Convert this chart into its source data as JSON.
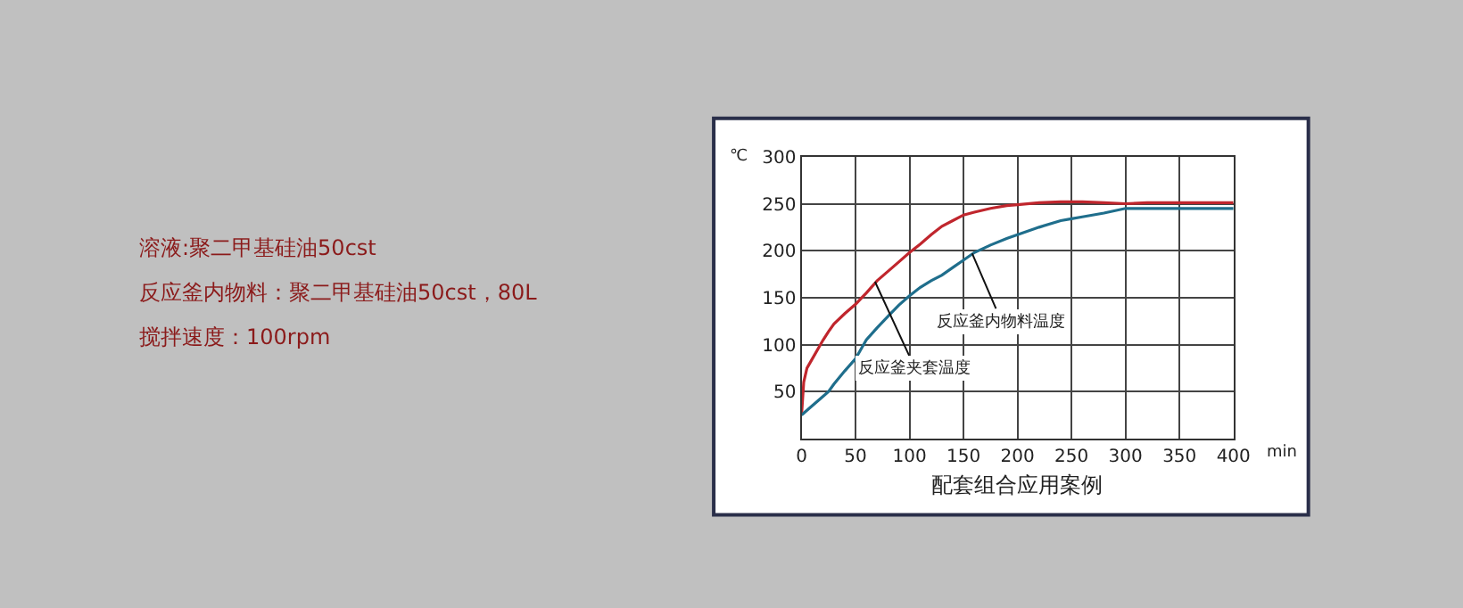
{
  "chart_data": {
    "type": "line",
    "title": "配套组合应用案例",
    "xlabel": "min",
    "ylabel": "℃",
    "x": [
      0,
      2,
      5,
      10,
      20,
      25,
      30,
      40,
      50,
      55,
      60,
      70,
      80,
      90,
      100,
      110,
      120,
      130,
      140,
      150,
      160,
      175,
      190,
      200,
      220,
      240,
      250,
      260,
      280,
      300,
      320,
      350,
      400
    ],
    "series": [
      {
        "color": "#c0262d",
        "values": [
          25,
          60,
          75,
          85,
          105,
          114,
          122,
          133,
          143,
          149,
          155,
          168,
          178,
          188,
          198,
          207,
          217,
          226,
          232,
          238,
          241,
          245,
          248,
          249,
          251,
          252,
          252,
          252,
          251,
          250,
          251,
          251,
          251
        ]
      },
      {
        "color": "#1f6e8c",
        "values": [
          25,
          27,
          30,
          35,
          45,
          50,
          58,
          72,
          85,
          95,
          105,
          118,
          130,
          142,
          152,
          161,
          168,
          174,
          182,
          190,
          198,
          206,
          213,
          217,
          225,
          232,
          234,
          236,
          240,
          245,
          245,
          245,
          245
        ]
      }
    ],
    "xlim": [
      0,
      400
    ],
    "xticks": [
      0,
      50,
      100,
      150,
      200,
      250,
      300,
      350,
      400
    ],
    "ylim": [
      0,
      300
    ],
    "yticks": [
      50,
      100,
      150,
      200,
      250,
      300
    ],
    "grid": true,
    "legend": false,
    "marker": "none",
    "line_style": "solid",
    "annotations": [
      {
        "text": "反应釜内物料温度",
        "x": 158,
        "y": 197
      },
      {
        "text": "反应釜夹套温度",
        "x": 68,
        "y": 167
      },
      "溶液:聚二甲基硅油50cst",
      "反应釜内物料：聚二甲基硅油50cst，80L",
      "搅拌速度：100rpm"
    ]
  }
}
